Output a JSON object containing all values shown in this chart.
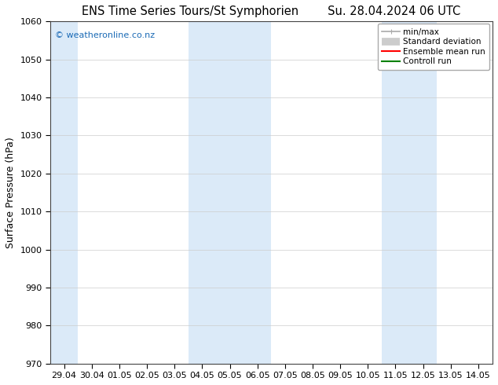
{
  "title_left": "ENS Time Series Tours/St Symphorien",
  "title_right": "Su. 28.04.2024 06 UTC",
  "ylabel": "Surface Pressure (hPa)",
  "ylim": [
    970,
    1060
  ],
  "yticks": [
    970,
    980,
    990,
    1000,
    1010,
    1020,
    1030,
    1040,
    1050,
    1060
  ],
  "xtick_labels": [
    "29.04",
    "30.04",
    "01.05",
    "02.05",
    "03.05",
    "04.05",
    "05.05",
    "06.05",
    "07.05",
    "08.05",
    "09.05",
    "10.05",
    "11.05",
    "12.05",
    "13.05",
    "14.05"
  ],
  "watermark": "© weatheronline.co.nz",
  "watermark_color": "#1a6ab5",
  "background_color": "#ffffff",
  "plot_bg_color": "#ffffff",
  "shaded_band_color": "#dbeaf8",
  "legend_items": [
    {
      "label": "min/max",
      "color": "#aaaaaa",
      "lw": 1.2,
      "style": "minmax"
    },
    {
      "label": "Standard deviation",
      "color": "#cccccc",
      "lw": 7,
      "style": "band"
    },
    {
      "label": "Ensemble mean run",
      "color": "#ff0000",
      "lw": 1.5,
      "style": "line"
    },
    {
      "label": "Controll run",
      "color": "#008000",
      "lw": 1.5,
      "style": "line"
    }
  ],
  "title_fontsize": 10.5,
  "tick_fontsize": 8,
  "label_fontsize": 9,
  "figsize": [
    6.34,
    4.9
  ],
  "dpi": 100
}
